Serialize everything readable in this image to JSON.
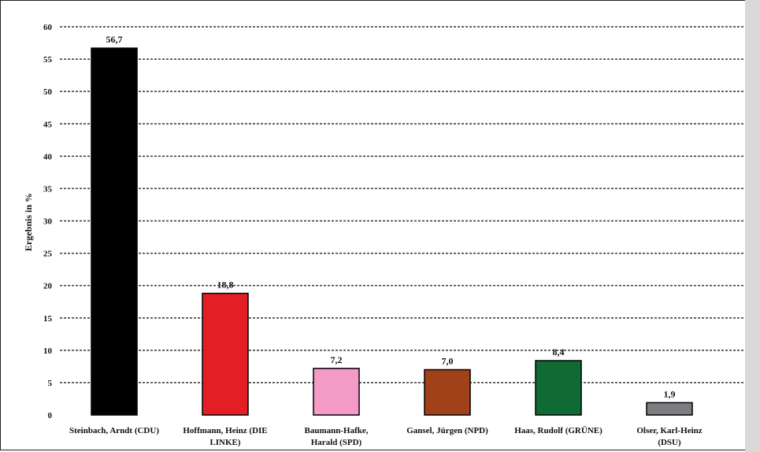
{
  "chart_data": {
    "type": "bar",
    "title": "",
    "xlabel": "",
    "ylabel": "Ergebnis in %",
    "ylim": [
      0,
      60
    ],
    "yticks": [
      0,
      5,
      10,
      15,
      20,
      25,
      30,
      35,
      40,
      45,
      50,
      55,
      60
    ],
    "grid": true,
    "categories": [
      [
        "Steinbach, Arndt (CDU)"
      ],
      [
        "Hoffmann, Heinz (DIE",
        "LINKE)"
      ],
      [
        "Baumann-Hafke,",
        "Harald (SPD)"
      ],
      [
        "Gansel, Jürgen (NPD)"
      ],
      [
        "Haas, Rudolf (GRÜNE)"
      ],
      [
        "Olser, Karl-Heinz",
        "(DSU)"
      ]
    ],
    "values": [
      56.7,
      18.8,
      7.2,
      7.0,
      8.4,
      1.9
    ],
    "value_labels": [
      "56,7",
      "18,8",
      "7,2",
      "7,0",
      "8,4",
      "1,9"
    ],
    "colors": [
      "#000000",
      "#e31e24",
      "#f39ac7",
      "#a0411a",
      "#0f6a34",
      "#7b7d80"
    ]
  }
}
